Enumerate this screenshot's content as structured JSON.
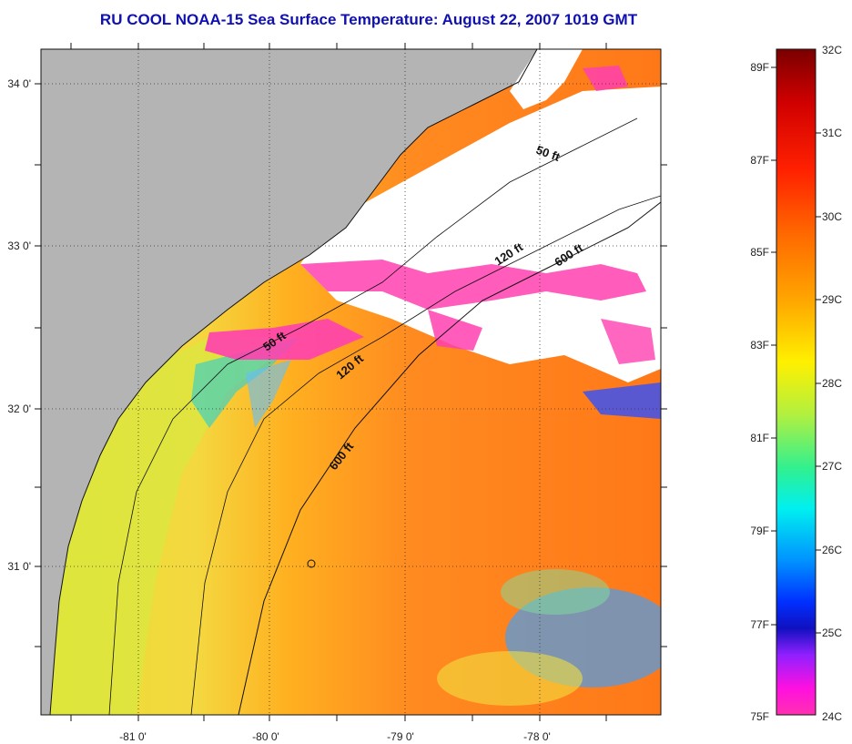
{
  "title": "RU COOL  NOAA-15  Sea Surface Temperature:  August 22, 2007 1019 GMT",
  "lat_labels": [
    "34 0'",
    "33 0'",
    "32 0'",
    "31 0'"
  ],
  "lon_labels": [
    "-81 0'",
    "-80 0'",
    "-79 0'",
    "-78 0'"
  ],
  "contour_labels": [
    "50 ft",
    "120 ft",
    "600 ft",
    "50 ft",
    "120 ft",
    "600 ft"
  ],
  "colorbar": {
    "celsius_labels": [
      "32C",
      "31C",
      "30C",
      "29C",
      "28C",
      "27C",
      "26C",
      "25C",
      "24C"
    ],
    "fahrenheit_labels": [
      "89F",
      "87F",
      "85F",
      "83F",
      "81F",
      "79F",
      "77F",
      "75F"
    ],
    "range_c": [
      24,
      32
    ],
    "range_f": [
      75,
      89.6
    ]
  },
  "colors": {
    "title": "#1010b0",
    "land": "#b4b4b4",
    "cloud": "#ffffff",
    "cloud_edge": "#ff3cb4",
    "warm": "#ff7a1a",
    "mid": "#f0e030",
    "cool": "#3aa0ff"
  }
}
